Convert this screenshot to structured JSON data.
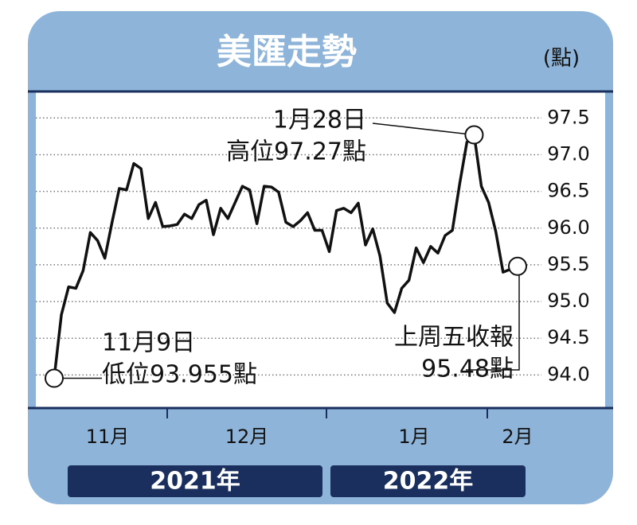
{
  "chart_data": {
    "type": "line",
    "title": "美匯走勢",
    "unit": "(點)",
    "categories": [
      null,
      null,
      null,
      null,
      null,
      null,
      null,
      null,
      null,
      null,
      null,
      null,
      null,
      null,
      null,
      null,
      null,
      null,
      null,
      null,
      null,
      null,
      null,
      null,
      null,
      null,
      null,
      null,
      null,
      null,
      null,
      null,
      null,
      null,
      null,
      null,
      null,
      null,
      null,
      null,
      null,
      null,
      null,
      null,
      null,
      null,
      null,
      null,
      null,
      null,
      null,
      null,
      null,
      null,
      null,
      null,
      null,
      null,
      null,
      null,
      null,
      null,
      null,
      null,
      null
    ],
    "series": [
      {
        "color": "#111111",
        "values": [
          93.955,
          94.82,
          95.2,
          95.18,
          95.42,
          95.94,
          95.83,
          95.59,
          96.08,
          96.54,
          96.52,
          96.88,
          96.81,
          96.13,
          96.35,
          96.02,
          96.03,
          96.05,
          96.19,
          96.13,
          96.32,
          96.38,
          95.91,
          96.27,
          96.13,
          96.35,
          96.57,
          96.52,
          96.06,
          96.57,
          96.56,
          96.49,
          96.08,
          96.02,
          96.1,
          96.21,
          95.97,
          95.97,
          95.68,
          96.24,
          96.27,
          96.21,
          96.34,
          95.77,
          95.99,
          95.62,
          94.98,
          94.85,
          95.18,
          95.29,
          95.73,
          95.53,
          95.75,
          95.66,
          95.9,
          95.97,
          96.6,
          97.17,
          97.27,
          96.57,
          96.35,
          95.95,
          95.4,
          95.44,
          95.48
        ]
      }
    ],
    "ylim": [
      93.56,
      97.85
    ],
    "yticks": [
      {
        "value": 94,
        "label": "94.0"
      },
      94.5,
      {
        "value": 95,
        "label": "95.0"
      },
      95.5,
      {
        "value": 96,
        "label": "96.0"
      },
      96.5,
      {
        "value": 97,
        "label": "97.0"
      },
      97.5
    ],
    "grid": true,
    "months": [
      "11月",
      "12月",
      "1月",
      "2月"
    ],
    "years": [
      "2021年",
      "2022年"
    ],
    "annotations": {
      "low": [
        "11月9日",
        "低位93.955點"
      ],
      "high": [
        "1月28日",
        "高位97.27點"
      ],
      "last": [
        "上周五收報",
        "95.48點"
      ]
    }
  }
}
